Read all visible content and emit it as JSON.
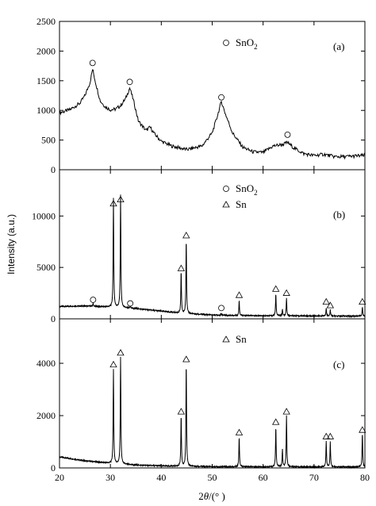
{
  "chart_data": {
    "type": "line",
    "ylabel": "Intensity (a.u.)",
    "xlabel": {
      "prefix": "2",
      "symbol": "θ",
      "suffix": "/(° )"
    },
    "xlim": [
      20,
      80
    ],
    "x_ticks": [
      20,
      30,
      40,
      50,
      60,
      70,
      80
    ],
    "line_color": "#000000",
    "panels": [
      {
        "label": "(a)",
        "ylim": [
          0,
          2500
        ],
        "y_ticks": [
          0,
          500,
          1000,
          1500,
          2000,
          2500
        ],
        "legend": [
          {
            "marker": "circle",
            "text": "SnO",
            "subscript": "2"
          }
        ],
        "series": {
          "x": [
            20,
            22,
            24,
            25,
            26,
            26.5,
            27,
            28,
            29,
            30,
            31,
            32,
            33,
            33.8,
            34.5,
            35.5,
            37,
            37.8,
            38.6,
            40,
            42,
            45,
            48,
            50,
            51,
            51.8,
            52.6,
            54,
            56,
            58,
            60,
            62,
            64,
            64.8,
            66,
            68,
            70,
            72,
            74,
            76,
            78,
            80
          ],
          "y": [
            960,
            1010,
            1120,
            1250,
            1470,
            1700,
            1500,
            1160,
            1060,
            1010,
            1020,
            1080,
            1200,
            1380,
            1180,
            820,
            660,
            720,
            610,
            480,
            400,
            340,
            400,
            620,
            900,
            1150,
            940,
            620,
            380,
            300,
            290,
            400,
            430,
            460,
            370,
            270,
            240,
            260,
            220,
            220,
            230,
            240
          ]
        },
        "markers": [
          {
            "shape": "circle",
            "x": 26.5,
            "y": 1800
          },
          {
            "shape": "circle",
            "x": 33.8,
            "y": 1480
          },
          {
            "shape": "circle",
            "x": 51.8,
            "y": 1220
          },
          {
            "shape": "circle",
            "x": 64.8,
            "y": 590
          }
        ]
      },
      {
        "label": "(b)",
        "ylim": [
          0,
          14500
        ],
        "y_ticks": [
          0,
          5000,
          10000
        ],
        "legend": [
          {
            "marker": "circle",
            "text": "SnO",
            "subscript": "2"
          },
          {
            "marker": "triangle",
            "text": "Sn",
            "subscript": ""
          }
        ],
        "series": {
          "baseline": [
            [
              20,
              1200
            ],
            [
              25,
              1250
            ],
            [
              30,
              1150
            ],
            [
              35,
              1000
            ],
            [
              40,
              750
            ],
            [
              45,
              500
            ],
            [
              50,
              380
            ],
            [
              55,
              320
            ],
            [
              60,
              300
            ],
            [
              65,
              290
            ],
            [
              70,
              280
            ],
            [
              75,
              270
            ],
            [
              80,
              260
            ]
          ],
          "peaks": [
            [
              26.6,
              300
            ],
            [
              30.6,
              10600
            ],
            [
              32.0,
              11000
            ],
            [
              33.9,
              200
            ],
            [
              43.9,
              4100
            ],
            [
              44.9,
              7300
            ],
            [
              51.8,
              150
            ],
            [
              55.3,
              1500
            ],
            [
              62.5,
              2200
            ],
            [
              63.8,
              600
            ],
            [
              64.6,
              1700
            ],
            [
              72.4,
              800
            ],
            [
              73.2,
              600
            ],
            [
              79.5,
              900
            ]
          ],
          "peak_width": 0.14
        },
        "markers": [
          {
            "shape": "circle",
            "x": 26.6,
            "y": 1850
          },
          {
            "shape": "triangle",
            "x": 30.6,
            "y": 11200
          },
          {
            "shape": "triangle",
            "x": 32.0,
            "y": 11600
          },
          {
            "shape": "circle",
            "x": 33.9,
            "y": 1500
          },
          {
            "shape": "triangle",
            "x": 43.9,
            "y": 4900
          },
          {
            "shape": "triangle",
            "x": 44.9,
            "y": 8100
          },
          {
            "shape": "circle",
            "x": 51.8,
            "y": 1050
          },
          {
            "shape": "triangle",
            "x": 55.3,
            "y": 2300
          },
          {
            "shape": "triangle",
            "x": 62.5,
            "y": 2900
          },
          {
            "shape": "triangle",
            "x": 64.6,
            "y": 2500
          },
          {
            "shape": "triangle",
            "x": 72.4,
            "y": 1650
          },
          {
            "shape": "triangle",
            "x": 73.2,
            "y": 1300
          },
          {
            "shape": "triangle",
            "x": 79.5,
            "y": 1650
          }
        ]
      },
      {
        "label": "(c)",
        "ylim": [
          0,
          5700
        ],
        "y_ticks": [
          0,
          2000,
          4000
        ],
        "legend": [
          {
            "marker": "triangle",
            "text": "Sn",
            "subscript": ""
          }
        ],
        "series": {
          "baseline": [
            [
              20,
              420
            ],
            [
              25,
              270
            ],
            [
              30,
              180
            ],
            [
              35,
              110
            ],
            [
              40,
              80
            ],
            [
              45,
              60
            ],
            [
              50,
              50
            ],
            [
              60,
              45
            ],
            [
              70,
              40
            ],
            [
              80,
              40
            ]
          ],
          "peaks": [
            [
              30.6,
              3600
            ],
            [
              32.0,
              4100
            ],
            [
              43.9,
              1950
            ],
            [
              44.9,
              4000
            ],
            [
              55.3,
              1150
            ],
            [
              62.5,
              1550
            ],
            [
              63.8,
              650
            ],
            [
              64.6,
              1950
            ],
            [
              72.4,
              1000
            ],
            [
              73.2,
              950
            ],
            [
              79.5,
              1300
            ]
          ],
          "peak_width": 0.14
        },
        "markers": [
          {
            "shape": "triangle",
            "x": 30.6,
            "y": 3950
          },
          {
            "shape": "triangle",
            "x": 32.0,
            "y": 4400
          },
          {
            "shape": "triangle",
            "x": 43.9,
            "y": 2150
          },
          {
            "shape": "triangle",
            "x": 44.9,
            "y": 4150
          },
          {
            "shape": "triangle",
            "x": 55.3,
            "y": 1350
          },
          {
            "shape": "triangle",
            "x": 62.5,
            "y": 1750
          },
          {
            "shape": "triangle",
            "x": 64.6,
            "y": 2150
          },
          {
            "shape": "triangle",
            "x": 72.4,
            "y": 1200
          },
          {
            "shape": "triangle",
            "x": 73.2,
            "y": 1200
          },
          {
            "shape": "triangle",
            "x": 79.5,
            "y": 1450
          }
        ]
      }
    ]
  }
}
